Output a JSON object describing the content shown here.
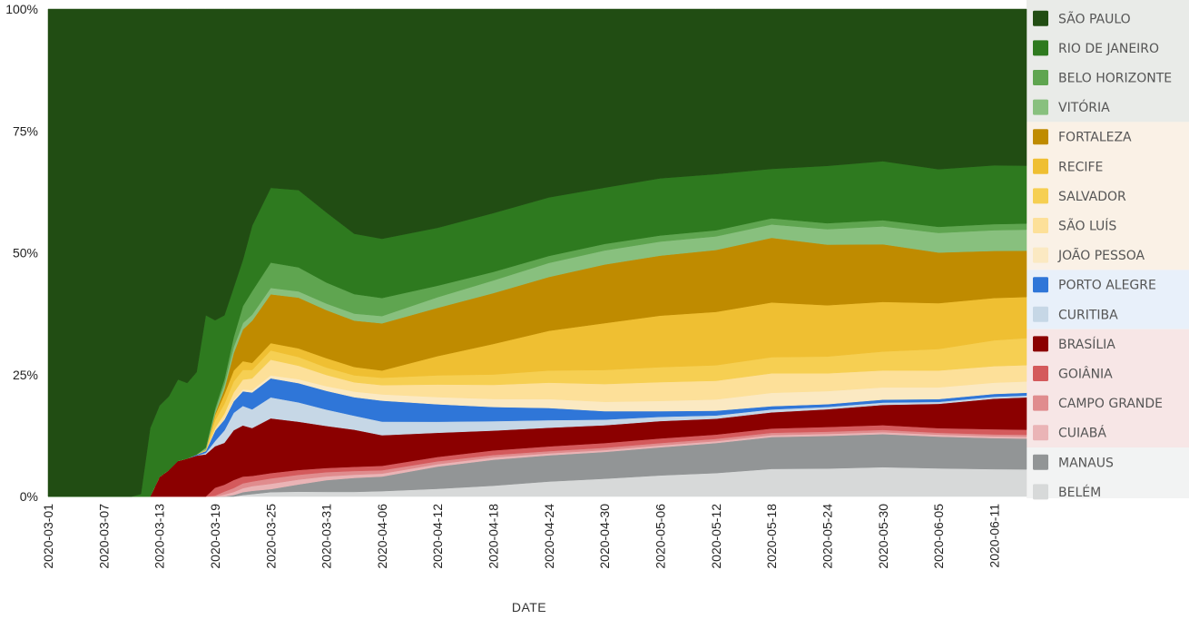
{
  "chart_data": {
    "type": "area",
    "stacked": "percent",
    "title": "",
    "xlabel": "DATE",
    "ylabel": "",
    "ylim": [
      0,
      100
    ],
    "yticks": [
      "0%",
      "25%",
      "50%",
      "75%",
      "100%"
    ],
    "ytick_values": [
      0,
      25,
      50,
      75,
      100
    ],
    "xticks": [
      "2020-03-01",
      "2020-03-07",
      "2020-03-13",
      "2020-03-19",
      "2020-03-25",
      "2020-03-31",
      "2020-04-06",
      "2020-04-12",
      "2020-04-18",
      "2020-04-24",
      "2020-04-30",
      "2020-05-06",
      "2020-05-12",
      "2020-05-18",
      "2020-05-24",
      "2020-05-30",
      "2020-06-05",
      "2020-06-11"
    ],
    "x_range": [
      "2020-03-01",
      "2020-06-14"
    ],
    "legend_position": "right",
    "x": [
      "2020-03-01",
      "2020-03-10",
      "2020-03-11",
      "2020-03-12",
      "2020-03-13",
      "2020-03-14",
      "2020-03-15",
      "2020-03-16",
      "2020-03-17",
      "2020-03-18",
      "2020-03-19",
      "2020-03-20",
      "2020-03-21",
      "2020-03-22",
      "2020-03-23",
      "2020-03-25",
      "2020-03-28",
      "2020-03-31",
      "2020-04-03",
      "2020-04-06",
      "2020-04-12",
      "2020-04-18",
      "2020-04-24",
      "2020-04-30",
      "2020-05-06",
      "2020-05-12",
      "2020-05-18",
      "2020-05-24",
      "2020-05-30",
      "2020-06-05",
      "2020-06-11",
      "2020-06-14"
    ],
    "series": [
      {
        "name": "BELÉM",
        "color": "#d7d9d9",
        "values": [
          0,
          0,
          0,
          0,
          0,
          0,
          0,
          0,
          0,
          0,
          0,
          0,
          0,
          0.3,
          0.5,
          0.9,
          1.0,
          1.0,
          1.0,
          1.1,
          1.6,
          2.3,
          3.2,
          3.8,
          4.5,
          5.0,
          5.8,
          6.0,
          6.2,
          6.0,
          5.8,
          5.8
        ]
      },
      {
        "name": "MANAUS",
        "color": "#929596",
        "values": [
          0,
          0,
          0,
          0,
          0,
          0,
          0,
          0,
          0,
          0,
          0,
          0,
          0.3,
          0.6,
          0.7,
          0.6,
          1.5,
          2.5,
          3.0,
          3.0,
          4.6,
          5.5,
          5.6,
          5.7,
          6.0,
          6.4,
          6.7,
          7.0,
          7.0,
          6.8,
          6.6,
          6.6
        ]
      },
      {
        "name": "CUIABÁ",
        "color": "#eab4b6",
        "values": [
          0,
          0,
          0,
          0,
          0,
          0,
          0,
          0,
          0,
          0,
          0,
          0.4,
          0.6,
          0.8,
          1.0,
          1.1,
          1.0,
          0.8,
          0.7,
          0.6,
          0.5,
          0.5,
          0.4,
          0.4,
          0.4,
          0.4,
          0.4,
          0.4,
          0.4,
          0.4,
          0.4,
          0.4
        ]
      },
      {
        "name": "CAMPO GRANDE",
        "color": "#e08c8e",
        "values": [
          0,
          0,
          0,
          0,
          0,
          0,
          0,
          0,
          0,
          0,
          0.2,
          0.6,
          0.8,
          1.0,
          1.0,
          1.1,
          1.0,
          0.9,
          0.8,
          0.7,
          0.6,
          0.5,
          0.5,
          0.5,
          0.5,
          0.5,
          0.5,
          0.5,
          0.5,
          0.4,
          0.4,
          0.4
        ]
      },
      {
        "name": "GOIÂNIA",
        "color": "#d45a5c",
        "values": [
          0,
          0,
          0,
          0,
          0,
          0,
          0,
          0,
          0,
          0,
          1.5,
          1.4,
          1.6,
          1.4,
          1.2,
          1.1,
          1.0,
          0.9,
          0.9,
          0.9,
          0.9,
          1.0,
          1.0,
          1.0,
          1.0,
          0.9,
          0.9,
          1.0,
          1.0,
          1.0,
          1.1,
          1.1
        ]
      },
      {
        "name": "BRASÍLIA",
        "color": "#8b0000",
        "values": [
          0,
          0,
          0,
          0,
          4.0,
          5.4,
          7.3,
          7.8,
          8.4,
          8.6,
          8.0,
          8.5,
          10.0,
          10.5,
          10.2,
          11.2,
          10.0,
          9.0,
          8.0,
          6.3,
          5.0,
          4.2,
          4.0,
          3.8,
          3.7,
          3.4,
          3.4,
          3.8,
          4.3,
          5.2,
          6.5,
          6.9
        ]
      },
      {
        "name": "CURITIBA",
        "color": "#c6d7e6",
        "values": [
          0,
          0,
          0,
          0,
          0,
          0,
          0,
          0,
          0,
          0.3,
          1.0,
          2.5,
          3.5,
          4.0,
          4.0,
          4.3,
          4.0,
          3.5,
          3.0,
          2.8,
          2.3,
          2.0,
          1.6,
          1.2,
          0.9,
          0.7,
          0.6,
          0.5,
          0.5,
          0.4,
          0.4,
          0.4
        ]
      },
      {
        "name": "PORTO ALEGRE",
        "color": "#2f76d8",
        "values": [
          0,
          0,
          0,
          0,
          0,
          0,
          0,
          0,
          0.2,
          0.4,
          2.0,
          2.2,
          2.3,
          3.0,
          3.6,
          3.9,
          4.0,
          4.0,
          4.0,
          4.3,
          3.6,
          3.0,
          2.6,
          1.8,
          1.2,
          1.0,
          0.7,
          0.6,
          0.6,
          0.6,
          0.6,
          0.6
        ]
      },
      {
        "name": "JOÃO PESSOA",
        "color": "#fbe9c2",
        "values": [
          0,
          0,
          0,
          0,
          0,
          0,
          0,
          0,
          0,
          0,
          0,
          0.2,
          0.3,
          0.4,
          0.5,
          0.6,
          0.8,
          1.0,
          1.2,
          1.3,
          1.5,
          1.7,
          1.9,
          2.0,
          2.2,
          2.4,
          2.8,
          2.8,
          2.6,
          2.5,
          2.4,
          2.4
        ]
      },
      {
        "name": "SÃO LUÍS",
        "color": "#fde099",
        "values": [
          0,
          0,
          0,
          0,
          0,
          0,
          0,
          0,
          0,
          0,
          0.5,
          1.0,
          1.5,
          2.0,
          2.5,
          3.2,
          2.8,
          2.4,
          2.0,
          1.9,
          2.6,
          3.0,
          3.5,
          3.8,
          4.0,
          4.0,
          4.1,
          3.8,
          3.6,
          3.6,
          3.5,
          3.5
        ]
      },
      {
        "name": "SALVADOR",
        "color": "#f6cf52",
        "values": [
          0,
          0,
          0,
          0,
          0,
          0,
          0,
          0,
          0,
          0.2,
          1.5,
          2.0,
          2.2,
          2.0,
          1.8,
          1.9,
          1.8,
          1.6,
          1.5,
          1.5,
          1.9,
          2.2,
          2.6,
          3.0,
          3.2,
          3.3,
          3.4,
          3.6,
          4.0,
          4.6,
          5.5,
          5.8
        ]
      },
      {
        "name": "RECIFE",
        "color": "#efbf32",
        "values": [
          0,
          0,
          0,
          0,
          0,
          0,
          0,
          0,
          0,
          0,
          1.0,
          2.0,
          2.2,
          1.8,
          1.5,
          1.5,
          1.8,
          2.0,
          1.8,
          1.5,
          4.0,
          6.5,
          8.5,
          10.0,
          11.0,
          11.4,
          11.5,
          11.0,
          10.5,
          9.8,
          9.0,
          8.8
        ]
      },
      {
        "name": "FORTALEZA",
        "color": "#bf8b00",
        "values": [
          0,
          0,
          0,
          0,
          0,
          0,
          0,
          0,
          0,
          0,
          0.3,
          1.0,
          3.5,
          6.5,
          9.0,
          10.0,
          10.5,
          10.3,
          10.0,
          9.7,
          10.0,
          10.8,
          11.5,
          12.5,
          12.8,
          13.2,
          13.6,
          13.0,
          12.2,
          10.8,
          10.0,
          9.9
        ]
      },
      {
        "name": "VITÓRIA",
        "color": "#88c07e",
        "values": [
          0,
          0,
          0,
          0,
          0,
          0,
          0,
          0,
          0,
          0.3,
          0.5,
          1.0,
          1.2,
          1.3,
          1.3,
          1.3,
          1.3,
          1.4,
          1.5,
          1.5,
          2.2,
          2.7,
          3.0,
          3.0,
          3.0,
          2.9,
          2.8,
          3.3,
          3.8,
          4.2,
          4.4,
          4.5
        ]
      },
      {
        "name": "BELO HORIZONTE",
        "color": "#5fa550",
        "values": [
          0,
          0,
          0,
          0,
          0,
          0,
          0,
          0,
          0,
          0.2,
          0.5,
          1.0,
          2.0,
          3.5,
          5.0,
          5.2,
          5.0,
          4.5,
          4.2,
          3.7,
          2.4,
          1.8,
          1.5,
          1.4,
          1.3,
          1.3,
          1.3,
          1.3,
          1.3,
          1.3,
          1.3,
          1.3
        ]
      },
      {
        "name": "RIO DE JANEIRO",
        "color": "#2e7a1f",
        "values": [
          0,
          0,
          0.5,
          14.0,
          14.6,
          15.1,
          16.7,
          15.5,
          16.9,
          27.0,
          17.0,
          13.0,
          10.0,
          9.5,
          14.0,
          15.3,
          16.0,
          15.0,
          13.0,
          12.2,
          12.0,
          12.5,
          12.5,
          12.0,
          12.2,
          12.0,
          10.4,
          12.3,
          12.5,
          12.3,
          12.5,
          12.4
        ]
      },
      {
        "name": "SÃO PAULO",
        "color": "#214d13",
        "values": [
          100,
          100,
          99.5,
          86.0,
          81.4,
          79.5,
          76.0,
          76.7,
          74.5,
          62.5,
          60.0,
          62.2,
          56.0,
          51.5,
          46.2,
          36.6,
          37.5,
          43.5,
          48.4,
          47.2,
          45.3,
          43.3,
          40.2,
          38.1,
          36.1,
          35.2,
          33.6,
          33.6,
          32.2,
          34.2,
          33.2,
          33.5
        ]
      }
    ]
  },
  "legend": {
    "items": [
      {
        "label": "SÃO PAULO",
        "color": "#214d13",
        "group": "sudeste"
      },
      {
        "label": "RIO DE JANEIRO",
        "color": "#2e7a1f",
        "group": "sudeste"
      },
      {
        "label": "BELO HORIZONTE",
        "color": "#5fa550",
        "group": "sudeste"
      },
      {
        "label": "VITÓRIA",
        "color": "#88c07e",
        "group": "sudeste"
      },
      {
        "label": "FORTALEZA",
        "color": "#bf8b00",
        "group": "nordeste"
      },
      {
        "label": "RECIFE",
        "color": "#efbf32",
        "group": "nordeste"
      },
      {
        "label": "SALVADOR",
        "color": "#f6cf52",
        "group": "nordeste"
      },
      {
        "label": "SÃO LUÍS",
        "color": "#fde099",
        "group": "nordeste"
      },
      {
        "label": "JOÃO PESSOA",
        "color": "#fbe9c2",
        "group": "nordeste"
      },
      {
        "label": "PORTO ALEGRE",
        "color": "#2f76d8",
        "group": "sul"
      },
      {
        "label": "CURITIBA",
        "color": "#c6d7e6",
        "group": "sul"
      },
      {
        "label": "BRASÍLIA",
        "color": "#8b0000",
        "group": "centro-oeste"
      },
      {
        "label": "GOIÂNIA",
        "color": "#d45a5c",
        "group": "centro-oeste"
      },
      {
        "label": "CAMPO GRANDE",
        "color": "#e08c8e",
        "group": "centro-oeste"
      },
      {
        "label": "CUIABÁ",
        "color": "#eab4b6",
        "group": "centro-oeste"
      },
      {
        "label": "MANAUS",
        "color": "#929596",
        "group": "norte"
      },
      {
        "label": "BELÉM",
        "color": "#d7d9d9",
        "group": "norte"
      }
    ],
    "group_colors": {
      "sudeste": "#e9ebe8",
      "nordeste": "#faf1e6",
      "sul": "#e8f0fa",
      "centro-oeste": "#f7e6e6",
      "norte": "#f2f3f3"
    }
  }
}
